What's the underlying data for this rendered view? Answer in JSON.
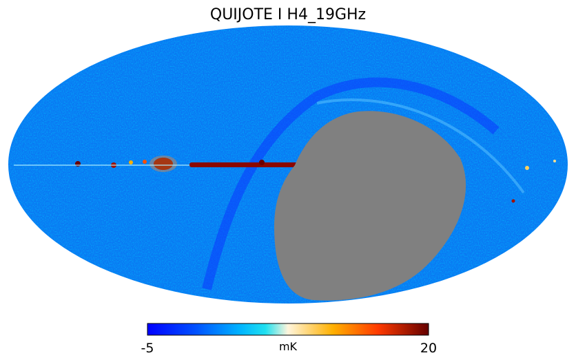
{
  "title": "QUIJOTE I H4_19GHz",
  "colorbar": {
    "min": "-5",
    "max": "20",
    "unit": "mK"
  }
}
